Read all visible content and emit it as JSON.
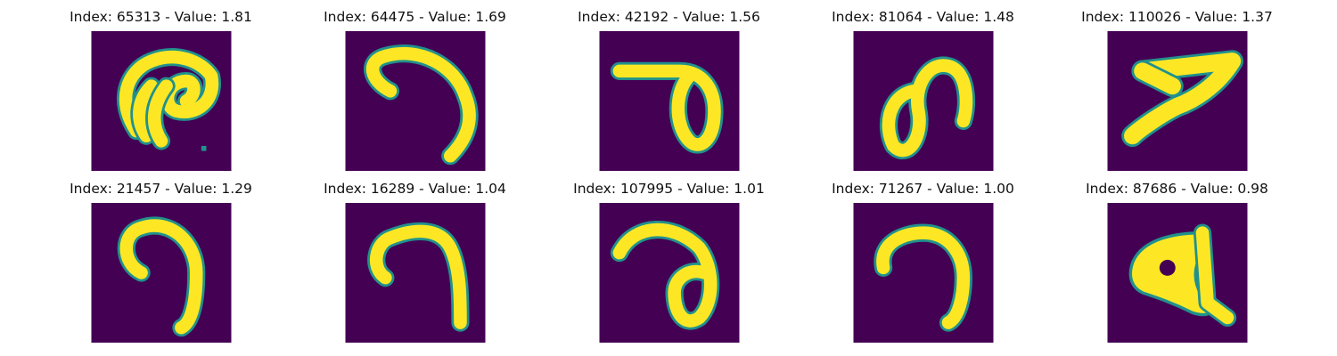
{
  "colors": {
    "background": "#440154",
    "edge": "#21918c",
    "fill": "#fde725"
  },
  "panels": [
    {
      "title": "Index: 65313 - Value: 1.81"
    },
    {
      "title": "Index: 64475 - Value: 1.69"
    },
    {
      "title": "Index: 42192 - Value: 1.56"
    },
    {
      "title": "Index: 81064 - Value: 1.48"
    },
    {
      "title": "Index: 110026 - Value: 1.37"
    },
    {
      "title": "Index: 21457 - Value: 1.29"
    },
    {
      "title": "Index: 16289 - Value: 1.04"
    },
    {
      "title": "Index: 107995 - Value: 1.01"
    },
    {
      "title": "Index: 71267 - Value: 1.00"
    },
    {
      "title": "Index: 87686 - Value: 0.98"
    }
  ]
}
